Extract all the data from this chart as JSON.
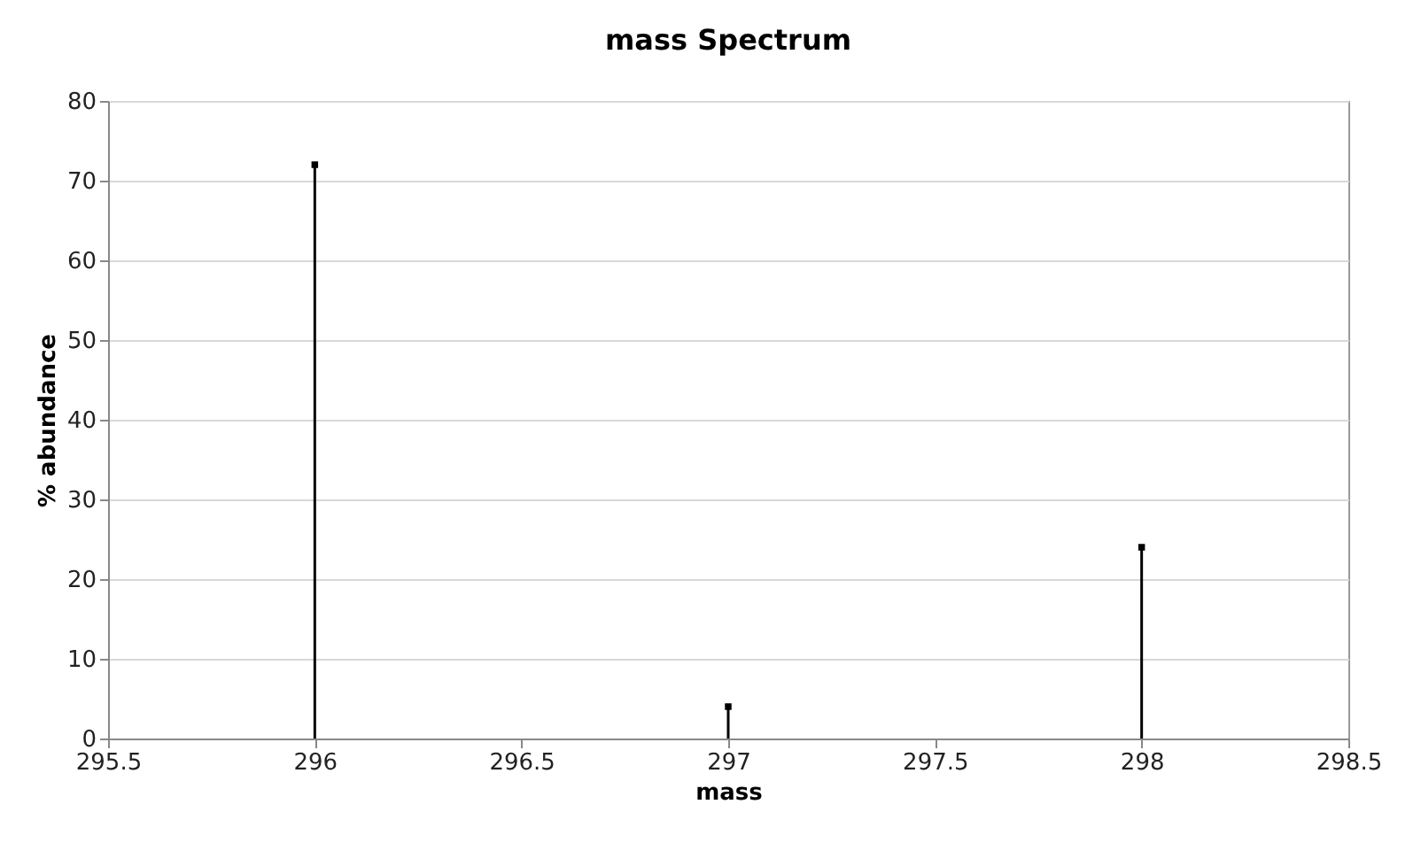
{
  "chart_data": {
    "type": "lollipop",
    "title": "mass Spectrum",
    "xlabel": "mass",
    "ylabel": "% abundance",
    "x": [
      296,
      297,
      298
    ],
    "series": [
      {
        "color": "#000000",
        "values": [
          72,
          4,
          24
        ]
      }
    ],
    "xlim": [
      295.5,
      298.5
    ],
    "xticks": [
      295.5,
      296,
      296.5,
      297,
      297.5,
      298,
      298.5
    ],
    "ylim": [
      0,
      80
    ],
    "yticks": [
      0,
      10,
      20,
      30,
      40,
      50,
      60,
      70,
      80
    ],
    "grid": "y",
    "marker": "square",
    "legend": false
  }
}
